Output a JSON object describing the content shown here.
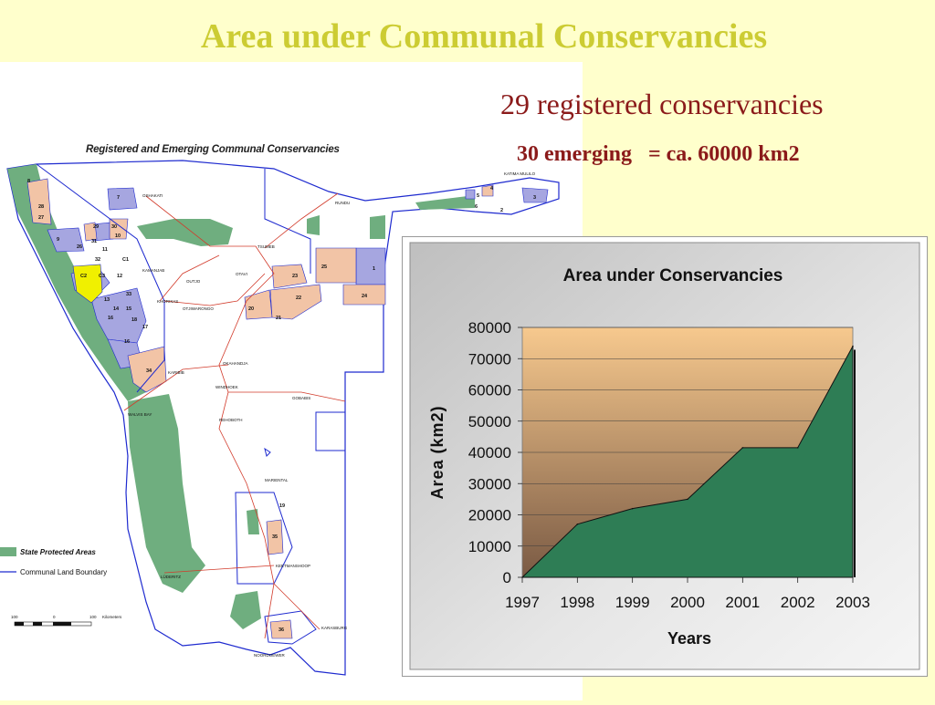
{
  "slide": {
    "title": "Area under Communal Conservancies",
    "stat_line_1": "29 registered conservancies",
    "stat_line_2": "30 emerging   = ca. 60000 km2"
  },
  "map": {
    "heading": "Registered and Emerging Communal Conservancies",
    "legend": {
      "protected_areas": "State Protected Areas",
      "boundary": "Communal Land Boundary",
      "scale_label": "Kilometers",
      "scale_ticks": [
        "100",
        "0",
        "100"
      ]
    },
    "places": [
      "OSHAKATI",
      "RUNDU",
      "KATIMA MULILO",
      "TSUMEB",
      "OTAVI",
      "OUTJO",
      "KAMANJAB",
      "KHORIXAS",
      "OTJIWARONGO",
      "OKAHANDJA",
      "KARIBIB",
      "WINDHOEK",
      "GOBABIS",
      "WALVIS BAY",
      "REHOBOTH",
      "MARIENTAL",
      "KEETMANSHOOP",
      "LÜDERITZ",
      "KARASBURG",
      "NOORDOEWER"
    ],
    "conservancy_numbers": [
      "8",
      "28",
      "27",
      "7",
      "29",
      "30",
      "9",
      "31",
      "10",
      "11",
      "26",
      "32",
      "C1",
      "C2",
      "C3",
      "12",
      "33",
      "13",
      "14",
      "15",
      "16",
      "17",
      "18",
      "34",
      "23",
      "22",
      "20",
      "21",
      "25",
      "1",
      "24",
      "4",
      "5",
      "6",
      "3",
      "2",
      "19",
      "35",
      "36"
    ],
    "colors": {
      "protected": "#6FAE7F",
      "registered": "#A6A6E0",
      "emerging": "#F2C4A6",
      "c_zone": "#F0F000",
      "boundary": "#1E2ACF",
      "roads": "#D23B2B"
    }
  },
  "chart_data": {
    "type": "area",
    "title": "Area under Conservancies",
    "xlabel": "Years",
    "ylabel": "Area (km2)",
    "categories": [
      "1997",
      "1998",
      "1999",
      "2000",
      "2001",
      "2002",
      "2003"
    ],
    "values": [
      0,
      17000,
      22000,
      25000,
      41500,
      41500,
      74000
    ],
    "ylim": [
      0,
      80000
    ],
    "yticks": [
      "0",
      "10000",
      "20000",
      "30000",
      "40000",
      "50000",
      "60000",
      "70000",
      "80000"
    ],
    "grid": true,
    "colors": {
      "fill": "#2E7D55",
      "plot_top": "#F7C98E",
      "plot_bottom": "#7A5A44",
      "frame_bg": "#DCDCDC"
    }
  }
}
